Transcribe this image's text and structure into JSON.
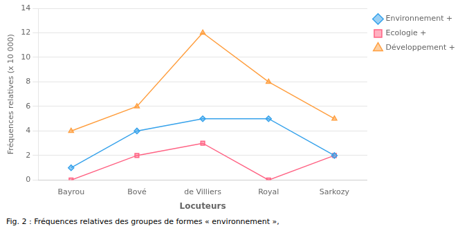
{
  "chart_data": {
    "type": "line",
    "categories": [
      "Bayrou",
      "Bové",
      "de Villiers",
      "Royal",
      "Sarkozy"
    ],
    "series": [
      {
        "name": "Environnement +",
        "values": [
          1,
          4,
          5,
          5,
          2
        ],
        "marker": "diamond"
      },
      {
        "name": "Ecologie +",
        "values": [
          0,
          2,
          3,
          0,
          2
        ],
        "marker": "square"
      },
      {
        "name": "Développement +",
        "values": [
          4,
          6,
          12,
          8,
          5
        ],
        "marker": "triangle"
      }
    ],
    "xlabel": "Locuteurs",
    "ylabel": "Fréquences relatives (x 10 000)",
    "ylim": [
      0,
      14
    ],
    "yticks": [
      0,
      2,
      4,
      6,
      8,
      10,
      12,
      14
    ],
    "grid": true,
    "legend": "right",
    "caption": "Fig. 2 :  Fréquences relatives des groupes de formes « environnement »,"
  }
}
